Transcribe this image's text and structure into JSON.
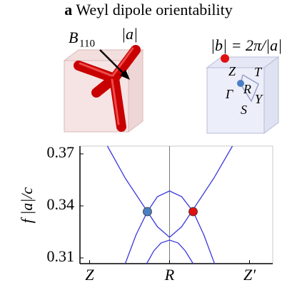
{
  "header": {
    "letter": "a",
    "title": "Weyl dipole orientability"
  },
  "left_panel": {
    "field": "B",
    "field_sub": "110",
    "lattice": "|a|"
  },
  "right_panel": {
    "relation": "|b| = 2π/|a|",
    "points": [
      "Z",
      "T",
      "R",
      "Γ",
      "Y",
      "S"
    ]
  },
  "chart_data": {
    "type": "line",
    "y_label": "f |a|/c",
    "xlim": [
      -1.12,
      1.29
    ],
    "xticks": [
      {
        "value": -1,
        "label": "Z"
      },
      {
        "value": 0,
        "label": "R"
      },
      {
        "value": 1,
        "label": "Z′"
      }
    ],
    "ylim": [
      0.3067,
      0.3745
    ],
    "yticks": [
      0.31,
      0.34,
      0.37
    ],
    "series": [
      {
        "color": "#3a3adc",
        "x": [
          -0.777,
          -0.554,
          -0.277,
          -0.152,
          0,
          0.152,
          0.277,
          0.554,
          0.786
        ],
        "values": [
          0.3745,
          0.356,
          0.3367,
          0.328,
          0.3219,
          0.328,
          0.3367,
          0.356,
          0.3745
        ]
      },
      {
        "color": "#3a3adc",
        "x": [
          -0.554,
          -0.42,
          -0.277,
          -0.152,
          0,
          0.152,
          0.295,
          0.43,
          0.5625
        ],
        "values": [
          0.3067,
          0.3232,
          0.3367,
          0.3453,
          0.3486,
          0.3453,
          0.3367,
          0.3232,
          0.3067
        ]
      },
      {
        "color": "#3a3adc",
        "x": [
          -0.286,
          -0.196,
          -0.107,
          0,
          0.107,
          0.196,
          0.295
        ],
        "values": [
          0.3067,
          0.3141,
          0.3186,
          0.3203,
          0.3186,
          0.3141,
          0.3067
        ]
      }
    ],
    "points": [
      {
        "color": "#4a7fc1",
        "x": -0.277,
        "value": 0.3367
      },
      {
        "color": "#e01010",
        "x": 0.295,
        "value": 0.3367
      }
    ]
  }
}
